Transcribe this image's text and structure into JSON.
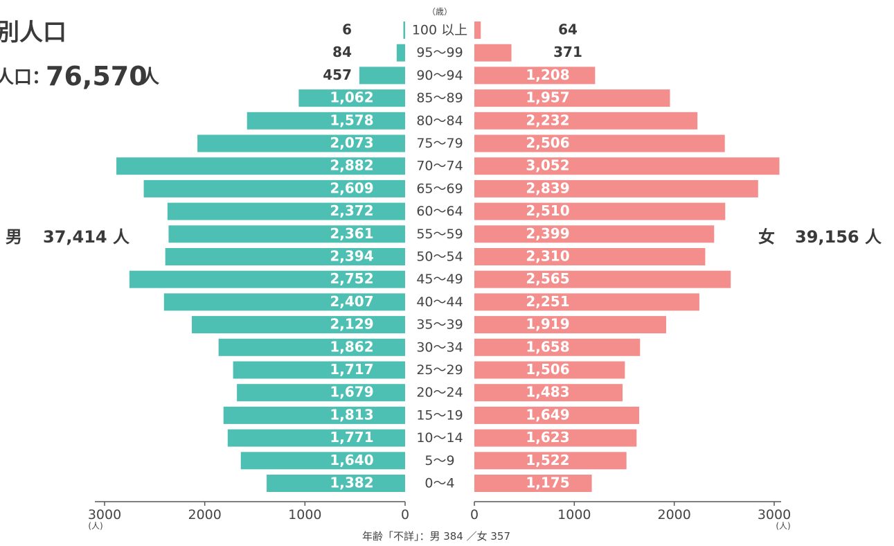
{
  "header": {
    "title_fragment": "別人口",
    "total_label_fragment": "人口：",
    "total_value": "76,570",
    "total_unit": "人"
  },
  "summary": {
    "male_label": "男",
    "male_total": "37,414 人",
    "female_label": "女",
    "female_total": "39,156 人"
  },
  "footnote": "年齢「不詳」：男 384 ／女 357",
  "chart_data": {
    "type": "bar",
    "age_unit_label": "（歳）",
    "categories": [
      "100 以上",
      "95～99",
      "90～94",
      "85～89",
      "80～84",
      "75～79",
      "70～74",
      "65～69",
      "60～64",
      "55～59",
      "50～54",
      "45～49",
      "40～44",
      "35～39",
      "30～34",
      "25～29",
      "20～24",
      "15～19",
      "10～14",
      "5～9",
      "0～4"
    ],
    "series": [
      {
        "name": "男",
        "color": "#4dbfb3",
        "values": [
          6,
          84,
          457,
          1062,
          1578,
          2073,
          2882,
          2609,
          2372,
          2361,
          2394,
          2752,
          2407,
          2129,
          1862,
          1717,
          1679,
          1813,
          1771,
          1640,
          1382
        ]
      },
      {
        "name": "女",
        "color": "#f48e8c",
        "values": [
          64,
          371,
          1208,
          1957,
          2232,
          2506,
          3052,
          2839,
          2510,
          2399,
          2310,
          2565,
          2251,
          1919,
          1658,
          1506,
          1483,
          1649,
          1623,
          1522,
          1175
        ]
      }
    ],
    "x_ticks": [
      3000,
      2000,
      1000,
      0
    ],
    "x_unit": "(人)",
    "xlim": [
      0,
      3000
    ]
  }
}
